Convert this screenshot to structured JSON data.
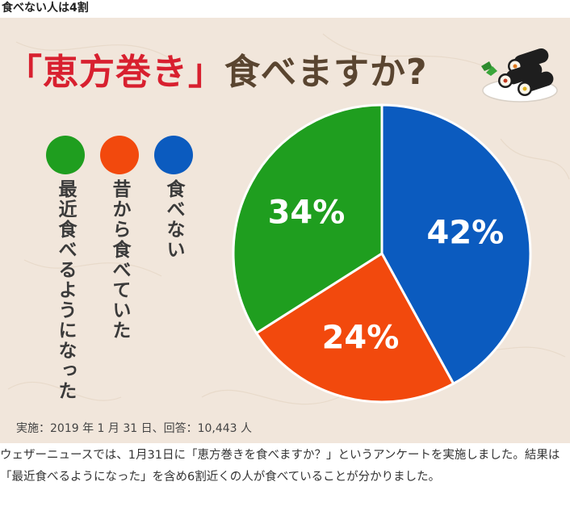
{
  "page": {
    "heading": "食べない人は4割",
    "caption": "ウェザーニュースでは、1月31日に「恵方巻きを食べますか？」というアンケートを実施しました。結果は「最近食べるようになった」を含め6割近くの人が食べていることが分かりました。"
  },
  "infographic": {
    "title_accent": "「恵方巻き」",
    "title_rest": "食べますか?",
    "footnote": "実施：2019 年 1 月 31 日、回答：10,443 人",
    "illustration_icon": "ehomaki-sushi-rolls-icon"
  },
  "chart_data": {
    "type": "pie",
    "title": "「恵方巻き」食べますか?",
    "slices": [
      {
        "label": "食べない",
        "value": 42,
        "display": "42%",
        "color": "#0b5bbf"
      },
      {
        "label": "昔から食べていた",
        "value": 24,
        "display": "24%",
        "color": "#f2490d"
      },
      {
        "label": "最近食べるようになった",
        "value": 34,
        "display": "34%",
        "color": "#1f9e1f"
      }
    ],
    "legend_placement": "left",
    "colors": {
      "background": "#f1e6db",
      "title_accent": "#d8202f",
      "title_text": "#5a4530"
    }
  }
}
